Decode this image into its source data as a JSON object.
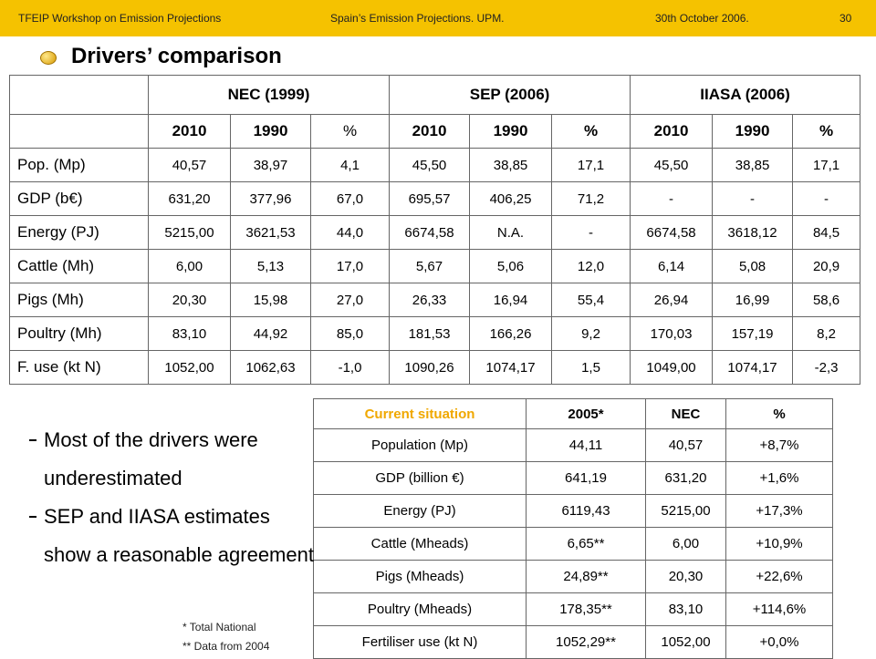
{
  "header": {
    "left": "TFEIP Workshop on Emission Projections",
    "center": "Spain’s Emission Projections. UPM.",
    "right": "30th October  2006.",
    "page": "30"
  },
  "title": "Drivers’ comparison",
  "table1": {
    "groups": [
      "NEC (1999)",
      "SEP (2006)",
      "IIASA (2006)"
    ],
    "subheaders": [
      "2010",
      "1990",
      "%",
      "2010",
      "1990",
      "%",
      "2010",
      "1990",
      "%"
    ],
    "rows": [
      [
        "Pop. (Mp)",
        "40,57",
        "38,97",
        "4,1",
        "45,50",
        "38,85",
        "17,1",
        "45,50",
        "38,85",
        "17,1"
      ],
      [
        "GDP (b€)",
        "631,20",
        "377,96",
        "67,0",
        "695,57",
        "406,25",
        "71,2",
        "-",
        "-",
        "-"
      ],
      [
        "Energy (PJ)",
        "5215,00",
        "3621,53",
        "44,0",
        "6674,58",
        "N.A.",
        "-",
        "6674,58",
        "3618,12",
        "84,5"
      ],
      [
        "Cattle (Mh)",
        "6,00",
        "5,13",
        "17,0",
        "5,67",
        "5,06",
        "12,0",
        "6,14",
        "5,08",
        "20,9"
      ],
      [
        "Pigs (Mh)",
        "20,30",
        "15,98",
        "27,0",
        "26,33",
        "16,94",
        "55,4",
        "26,94",
        "16,99",
        "58,6"
      ],
      [
        "Poultry (Mh)",
        "83,10",
        "44,92",
        "85,0",
        "181,53",
        "166,26",
        "9,2",
        "170,03",
        "157,19",
        "8,2"
      ],
      [
        "F. use (kt N)",
        "1052,00",
        "1062,63",
        "-1,0",
        "1090,26",
        "1074,17",
        "1,5",
        "1049,00",
        "1074,17",
        "-2,3"
      ]
    ]
  },
  "table2": {
    "headers": [
      "Current situation",
      "2005*",
      "NEC",
      "%"
    ],
    "rows": [
      [
        "Population (Mp)",
        "44,11",
        "40,57",
        "+8,7%"
      ],
      [
        "GDP (billion €)",
        "641,19",
        "631,20",
        "+1,6%"
      ],
      [
        "Energy (PJ)",
        "6119,43",
        "5215,00",
        "+17,3%"
      ],
      [
        "Cattle (Mheads)",
        "6,65**",
        "6,00",
        "+10,9%"
      ],
      [
        "Pigs (Mheads)",
        "24,89**",
        "20,30",
        "+22,6%"
      ],
      [
        "Poultry  (Mheads)",
        "178,35**",
        "83,10",
        "+114,6%"
      ],
      [
        "Fertiliser use (kt N)",
        "1052,29**",
        "1052,00",
        "+0,0%"
      ]
    ]
  },
  "bullets": [
    "Most of the drivers were underestimated",
    "SEP and IIASA estimates show a reasonable agreement"
  ],
  "footnotes": [
    "* Total  National",
    "** Data from 2004"
  ]
}
